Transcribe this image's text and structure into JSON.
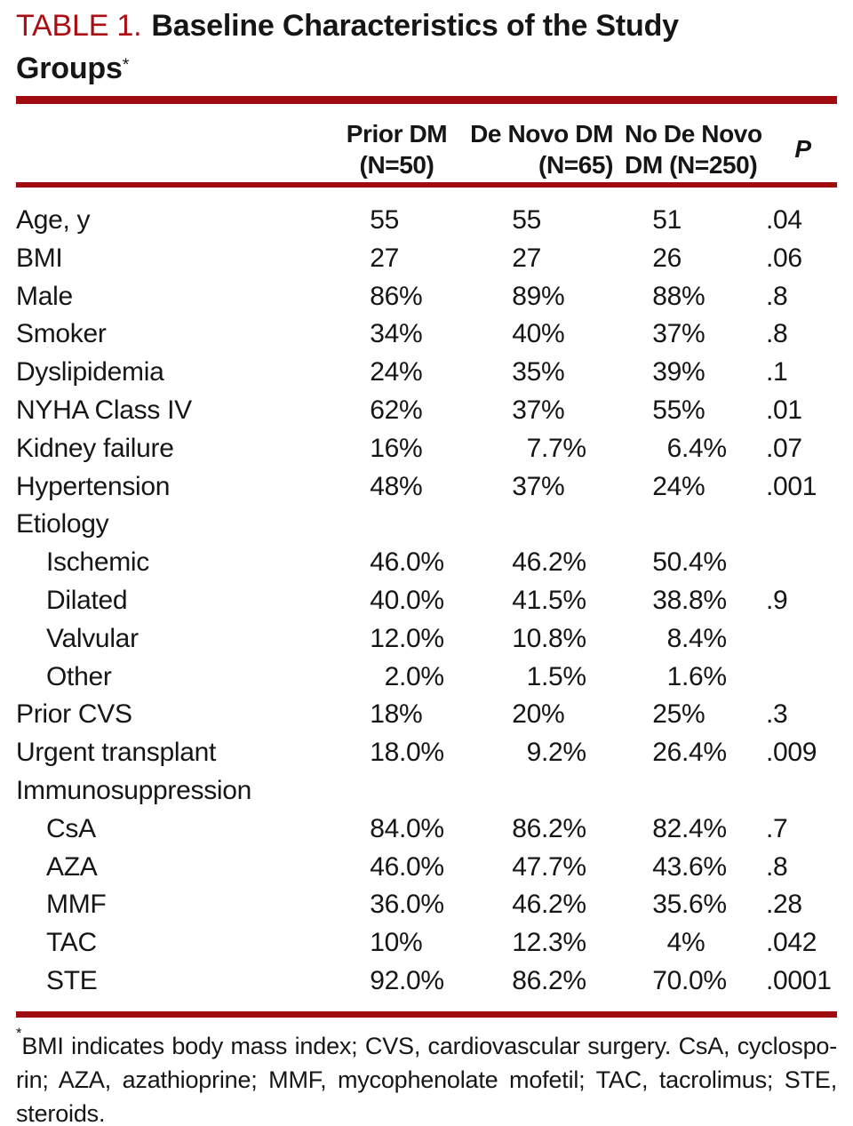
{
  "title": {
    "label": "TABLE 1.",
    "line1": "Baseline Characteristics of the Study",
    "line2": "Groups",
    "marker": "*"
  },
  "table": {
    "columns": [
      {
        "line1": "Prior DM",
        "line2": "(N=50)"
      },
      {
        "line1": "De Novo DM",
        "line2": "(N=65)"
      },
      {
        "line1": "No De Novo",
        "line2": "DM (N=250)"
      },
      {
        "line1": "P",
        "line2": ""
      }
    ],
    "rows": [
      {
        "label": "Age, y",
        "indent": false,
        "values": [
          "55",
          "55",
          "51",
          ".04"
        ]
      },
      {
        "label": "BMI",
        "indent": false,
        "values": [
          "27",
          "27",
          "26",
          ".06"
        ]
      },
      {
        "label": "Male",
        "indent": false,
        "values": [
          "86%",
          "89%",
          "88%",
          ".8"
        ]
      },
      {
        "label": "Smoker",
        "indent": false,
        "values": [
          "34%",
          "40%",
          "37%",
          ".8"
        ]
      },
      {
        "label": "Dyslipidemia",
        "indent": false,
        "values": [
          "24%",
          "35%",
          "39%",
          ".1"
        ]
      },
      {
        "label": "NYHA Class IV",
        "indent": false,
        "values": [
          "62%",
          "37%",
          "55%",
          ".01"
        ]
      },
      {
        "label": "Kidney failure",
        "indent": false,
        "values": [
          "16%",
          "7.7%",
          "6.4%",
          ".07"
        ]
      },
      {
        "label": "Hypertension",
        "indent": false,
        "values": [
          "48%",
          "37%",
          "24%",
          ".001"
        ]
      },
      {
        "label": "Etiology",
        "indent": false,
        "values": [
          "",
          "",
          "",
          ""
        ]
      },
      {
        "label": "Ischemic",
        "indent": true,
        "values": [
          "46.0%",
          "46.2%",
          "50.4%",
          ""
        ]
      },
      {
        "label": "Dilated",
        "indent": true,
        "values": [
          "40.0%",
          "41.5%",
          "38.8%",
          ".9"
        ]
      },
      {
        "label": "Valvular",
        "indent": true,
        "values": [
          "12.0%",
          "10.8%",
          "8.4%",
          ""
        ]
      },
      {
        "label": "Other",
        "indent": true,
        "values": [
          "2.0%",
          "1.5%",
          "1.6%",
          ""
        ]
      },
      {
        "label": "Prior CVS",
        "indent": false,
        "values": [
          "18%",
          "20%",
          "25%",
          ".3"
        ]
      },
      {
        "label": "Urgent transplant",
        "indent": false,
        "values": [
          "18.0%",
          "9.2%",
          "26.4%",
          ".009"
        ]
      },
      {
        "label": "Immunosuppression",
        "indent": false,
        "values": [
          "",
          "",
          "",
          ""
        ]
      },
      {
        "label": "CsA",
        "indent": true,
        "values": [
          "84.0%",
          "86.2%",
          "82.4%",
          ".7"
        ]
      },
      {
        "label": "AZA",
        "indent": true,
        "values": [
          "46.0%",
          "47.7%",
          "43.6%",
          ".8"
        ]
      },
      {
        "label": "MMF",
        "indent": true,
        "values": [
          "36.0%",
          "46.2%",
          "35.6%",
          ".28"
        ]
      },
      {
        "label": "TAC",
        "indent": true,
        "values": [
          "10%",
          "12.3%",
          "4%",
          ".042"
        ]
      },
      {
        "label": "STE",
        "indent": true,
        "values": [
          "92.0%",
          "86.2%",
          "70.0%",
          ".0001"
        ]
      }
    ]
  },
  "footnote": {
    "marker": "*",
    "lines": [
      "BMI indicates body mass index; CVS, cardiovascular surgery. CsA, cyclospo-",
      "rin; AZA, azathioprine; MMF, mycophenolate mofetil; TAC, tacrolimus; STE,",
      "steroids."
    ]
  },
  "colors": {
    "accent_red": "#A90E12",
    "rule_red": "#A00B10",
    "text": "#161616"
  }
}
